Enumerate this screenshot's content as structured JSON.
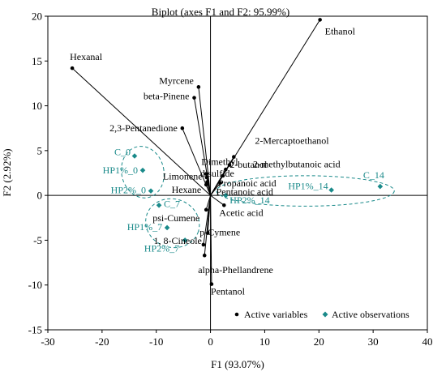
{
  "chart_data": {
    "type": "scatter",
    "title": "Biplot (axes F1 and F2: 95.99%)",
    "xlabel": "F1 (93.07%)",
    "ylabel": "F2 (2.92%)",
    "xlim": [
      -30,
      40
    ],
    "ylim": [
      -15,
      20
    ],
    "xticks": [
      -30,
      -20,
      -10,
      0,
      10,
      20,
      30,
      40
    ],
    "yticks": [
      -15,
      -10,
      -5,
      0,
      5,
      10,
      15,
      20
    ],
    "legend": {
      "placement": "bottom-right",
      "entries": [
        "Active variables",
        "Active observations"
      ]
    },
    "colors": {
      "variables": "#000000",
      "observations": "#1a8a8a"
    },
    "variables": [
      {
        "name": "Ethanol",
        "x": 20.2,
        "y": 19.6
      },
      {
        "name": "Hexanal",
        "x": -25.5,
        "y": 14.2
      },
      {
        "name": "Myrcene",
        "x": -2.2,
        "y": 12.1
      },
      {
        "name": "beta-Pinene",
        "x": -3.0,
        "y": 10.9
      },
      {
        "name": "2,3-Pentanedione",
        "x": -5.2,
        "y": 7.5
      },
      {
        "name": "2-Mercaptoethanol",
        "x": 4.3,
        "y": 4.3
      },
      {
        "name": "2-methylbutanoic acid",
        "x": 3.5,
        "y": 3.4
      },
      {
        "name": "Dimethyl",
        "x": -0.8,
        "y": 2.4
      },
      {
        "name": "disulfide",
        "x": -0.7,
        "y": 2.0
      },
      {
        "name": "Limonene",
        "x": -0.6,
        "y": 1.5
      },
      {
        "name": "Hexane",
        "x": -0.8,
        "y": 1.2
      },
      {
        "name": "2-butanol",
        "x": 2.8,
        "y": 2.9
      },
      {
        "name": "Propanoic acid",
        "x": 2.3,
        "y": 2.2
      },
      {
        "name": "Pentanoic acid",
        "x": 1.8,
        "y": 1.4
      },
      {
        "name": "Acetic acid",
        "x": 2.5,
        "y": -1.1
      },
      {
        "name": "psi-Cumene",
        "x": -0.8,
        "y": -1.6
      },
      {
        "name": "p-Cymene",
        "x": -0.5,
        "y": -4.2
      },
      {
        "name": "1, 8-Cineole",
        "x": -1.3,
        "y": -5.5
      },
      {
        "name": "alpha-Phellandrene",
        "x": -1.1,
        "y": -6.7
      },
      {
        "name": "Pentanol",
        "x": 0.2,
        "y": -9.9
      }
    ],
    "observations": [
      {
        "name": "C_0",
        "x": -14.0,
        "y": 4.4
      },
      {
        "name": "HP1%_0",
        "x": -12.5,
        "y": 2.8
      },
      {
        "name": "HP2%_0",
        "x": -11.0,
        "y": 0.5
      },
      {
        "name": "C_14",
        "x": 31.3,
        "y": 1.0
      },
      {
        "name": "HP1%_14",
        "x": 22.3,
        "y": 0.6
      },
      {
        "name": "HP2%_14",
        "x": 2.8,
        "y": 0.0
      },
      {
        "name": "C_7",
        "x": -9.5,
        "y": -1.1
      },
      {
        "name": "HP1%_7",
        "x": -8.0,
        "y": -3.6
      },
      {
        "name": "HP2%_7",
        "x": -4.7,
        "y": -5.0
      }
    ],
    "clusters": [
      {
        "cx": -12.5,
        "cy": 2.6,
        "rx": 3.9,
        "ry": 2.9,
        "rotate_deg": -12
      },
      {
        "cx": 17.5,
        "cy": 0.5,
        "rx": 16.4,
        "ry": 1.7,
        "rotate_deg": 0
      },
      {
        "cx": -7.0,
        "cy": -3.1,
        "rx": 5.0,
        "ry": 2.7,
        "rotate_deg": 18
      }
    ]
  }
}
